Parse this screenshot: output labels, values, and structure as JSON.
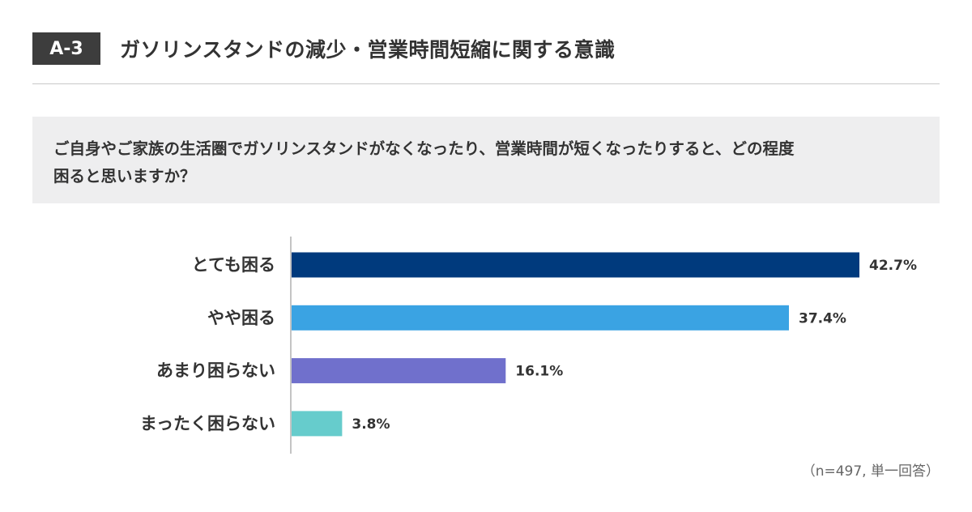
{
  "header": {
    "badge": "A-3",
    "title": "ガソリンスタンドの減少・営業時間短縮に関する意識"
  },
  "question": {
    "line1": "ご自身やご家族の生活圏でガソリンスタンドがなくなったり、営業時間が短くなったりすると、どの程度",
    "line2": "困ると思いますか？"
  },
  "note": "（n=497, 単一回答）",
  "chart_data": {
    "type": "bar",
    "orientation": "horizontal",
    "categories": [
      "とても困る",
      "やや困る",
      "あまり困らない",
      "まったく困らない"
    ],
    "values": [
      42.7,
      37.4,
      16.1,
      3.8
    ],
    "value_labels": [
      "42.7%",
      "37.4%",
      "16.1%",
      "3.8%"
    ],
    "colors": [
      "#003a7d",
      "#3aa3e3",
      "#7070cc",
      "#66cccc"
    ],
    "xlim": [
      0,
      42.7
    ],
    "grid": false
  }
}
